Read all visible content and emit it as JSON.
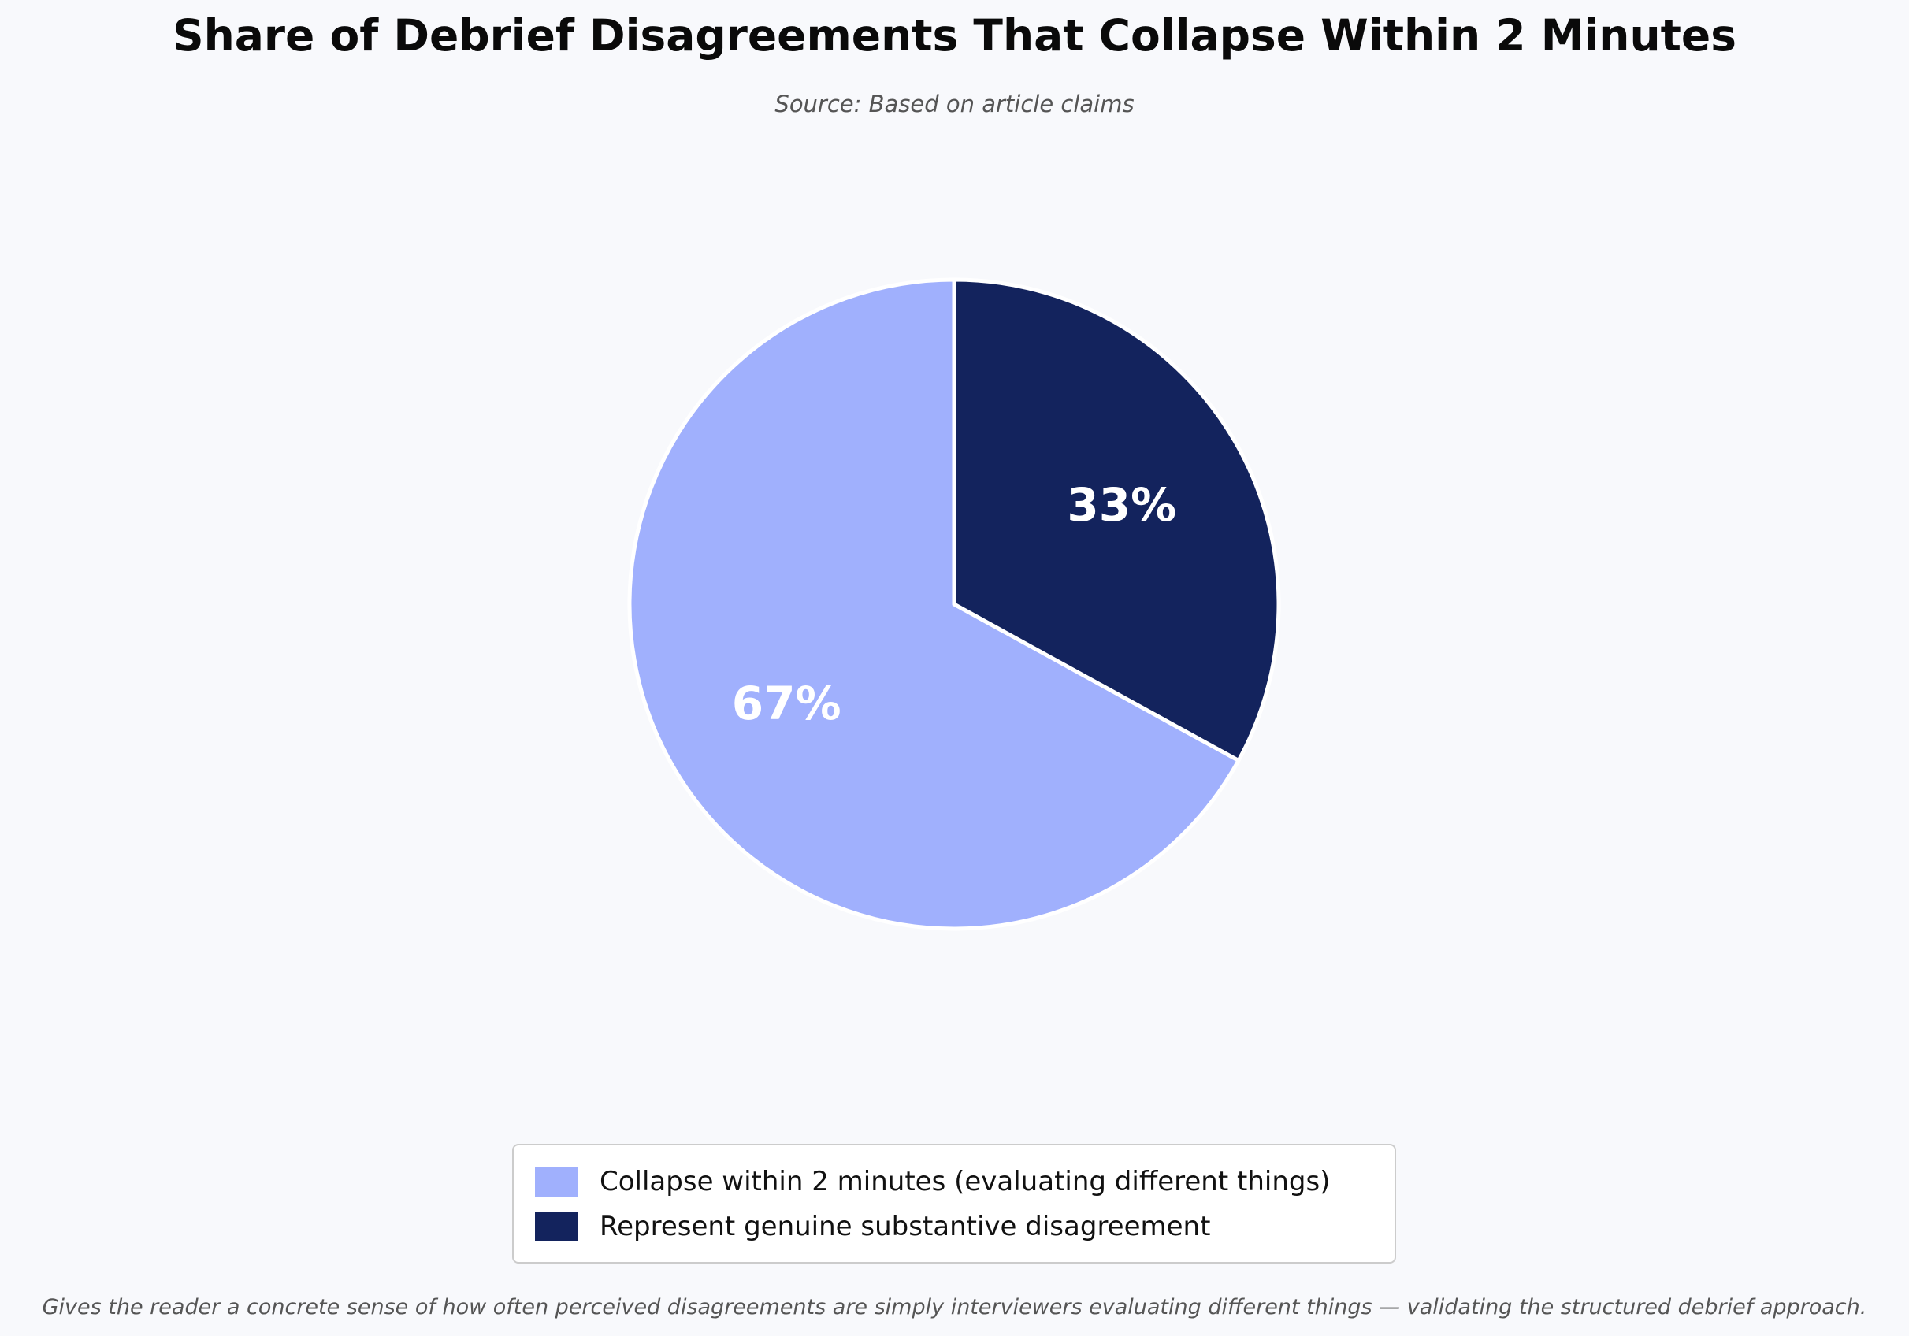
{
  "chart_data": {
    "type": "pie",
    "title": "Share of Debrief Disagreements That Collapse Within 2 Minutes",
    "subtitle": "Source: Based on article claims",
    "slices": [
      {
        "label": "Collapse within 2 minutes (evaluating different things)",
        "value": 67,
        "display": "67%",
        "color": "#a0b0fd"
      },
      {
        "label": "Represent genuine substantive disagreement",
        "value": 33,
        "display": "33%",
        "color": "#13235d"
      }
    ],
    "legend_placement": "bottom-center",
    "footnote": "Gives the reader a concrete sense of how often perceived disagreements are simply interviewers evaluating different things — validating the structured debrief approach."
  },
  "colors": {
    "background": "#f8f9fc",
    "slice_edge": "#ffffff",
    "label_text": "#ffffff"
  }
}
